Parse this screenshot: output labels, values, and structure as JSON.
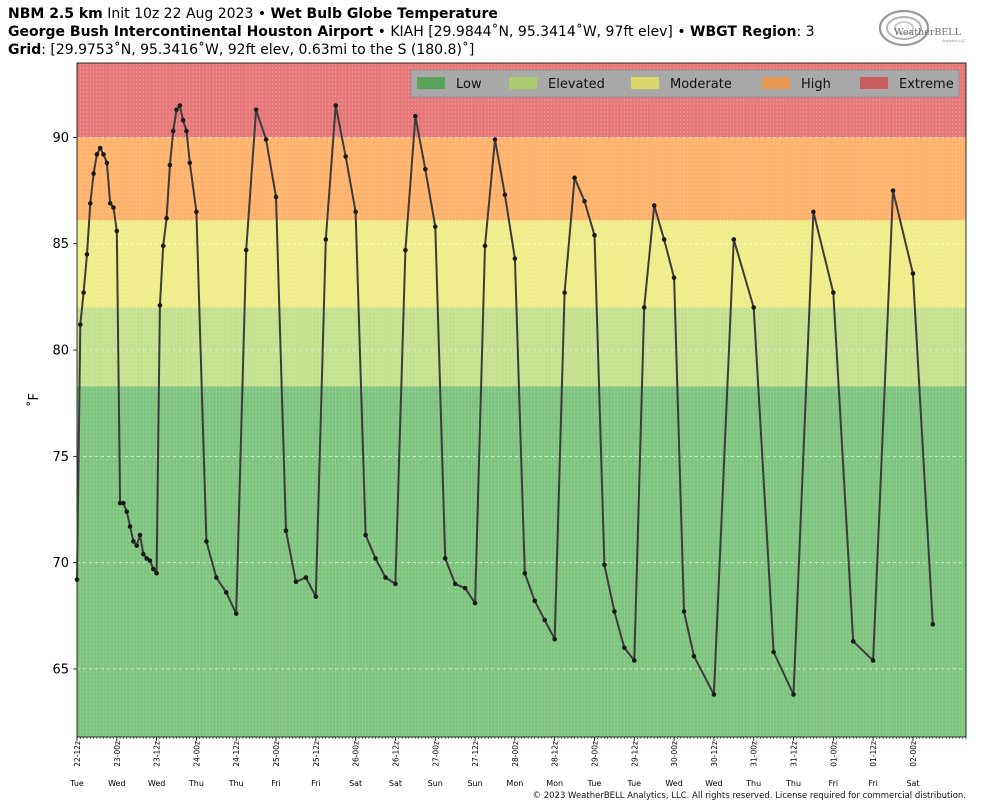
{
  "header": {
    "model": "NBM 2.5 km",
    "init": "Init 10z 22 Aug 2023",
    "sep": "•",
    "product": "Wet Bulb Globe Temperature",
    "station_name": "George Bush Intercontinental Houston Airport",
    "station_info": "KIAH [29.9844˚N, 95.3414˚W, 97ft elev]",
    "region_label": "WBGT Region",
    "region_value": ": 3",
    "grid_label": "Grid",
    "grid_value": ": [29.9753˚N, 95.3416˚W, 92ft elev, 0.63mi to the S (180.8)˚]"
  },
  "logo": {
    "text": "WeatherBELL",
    "sub": "Analytics LLC"
  },
  "footer": {
    "copyright": "© 2023 WeatherBELL Analytics, LLC. All rights reserved. License required for commercial distribution."
  },
  "colors": {
    "low": "#7fc47f",
    "elevated": "#c5e08e",
    "moderate": "#eeed8a",
    "high": "#ffb26b",
    "extreme": "#e67878",
    "line": "#3c3c3c"
  },
  "chart_data": {
    "type": "line",
    "ylabel": "˚F",
    "ylim": [
      61.8,
      93.5
    ],
    "yticks": [
      65,
      70,
      75,
      80,
      85,
      90
    ],
    "grid": true,
    "legend_position": "top-right",
    "risk_bands": [
      {
        "name": "Low",
        "from": 61.8,
        "to": 78.3,
        "color": "#7fc47f"
      },
      {
        "name": "Elevated",
        "from": 78.3,
        "to": 82.0,
        "color": "#c5e08e"
      },
      {
        "name": "Moderate",
        "from": 82.0,
        "to": 86.1,
        "color": "#eeed8a"
      },
      {
        "name": "High",
        "from": 86.1,
        "to": 90.0,
        "color": "#ffb26b"
      },
      {
        "name": "Extreme",
        "from": 90.0,
        "to": 93.5,
        "color": "#e67878"
      }
    ],
    "legend": [
      {
        "name": "Low",
        "color": "#5aa35a"
      },
      {
        "name": "Elevated",
        "color": "#aacd6e"
      },
      {
        "name": "Moderate",
        "color": "#d8d86a"
      },
      {
        "name": "High",
        "color": "#e89a55"
      },
      {
        "name": "Extreme",
        "color": "#c95c5c"
      }
    ],
    "x_unit": "hours after 2023-08-22 12z",
    "xlim": [
      0,
      268
    ],
    "x_ticks": [
      {
        "h": 0,
        "label": "22-12z",
        "day": "Tue"
      },
      {
        "h": 12,
        "label": "23-00z",
        "day": "Wed"
      },
      {
        "h": 24,
        "label": "23-12z",
        "day": "Wed"
      },
      {
        "h": 36,
        "label": "24-00z",
        "day": "Thu"
      },
      {
        "h": 48,
        "label": "24-12z",
        "day": "Thu"
      },
      {
        "h": 60,
        "label": "25-00z",
        "day": "Fri"
      },
      {
        "h": 72,
        "label": "25-12z",
        "day": "Fri"
      },
      {
        "h": 84,
        "label": "26-00z",
        "day": "Sat"
      },
      {
        "h": 96,
        "label": "26-12z",
        "day": "Sat"
      },
      {
        "h": 108,
        "label": "27-00z",
        "day": "Sun"
      },
      {
        "h": 120,
        "label": "27-12z",
        "day": "Sun"
      },
      {
        "h": 132,
        "label": "28-00z",
        "day": "Mon"
      },
      {
        "h": 144,
        "label": "28-12z",
        "day": "Mon"
      },
      {
        "h": 156,
        "label": "29-00z",
        "day": "Tue"
      },
      {
        "h": 168,
        "label": "29-12z",
        "day": "Tue"
      },
      {
        "h": 180,
        "label": "30-00z",
        "day": "Wed"
      },
      {
        "h": 192,
        "label": "30-12z",
        "day": "Wed"
      },
      {
        "h": 204,
        "label": "31-00z",
        "day": "Thu"
      },
      {
        "h": 216,
        "label": "31-12z",
        "day": "Thu"
      },
      {
        "h": 228,
        "label": "01-00z",
        "day": "Fri"
      },
      {
        "h": 240,
        "label": "01-12z",
        "day": "Fri"
      },
      {
        "h": 252,
        "label": "02-00z",
        "day": "Sat"
      }
    ],
    "series": [
      {
        "values": [
          [
            0,
            69.2
          ],
          [
            1,
            81.2
          ],
          [
            2,
            82.7
          ],
          [
            3,
            84.5
          ],
          [
            4,
            86.9
          ],
          [
            5,
            88.3
          ],
          [
            6,
            89.2
          ],
          [
            7,
            89.5
          ],
          [
            8,
            89.2
          ],
          [
            9,
            88.8
          ],
          [
            10,
            86.9
          ],
          [
            11,
            86.7
          ],
          [
            12,
            85.6
          ],
          [
            13,
            72.8
          ],
          [
            14,
            72.8
          ],
          [
            15,
            72.4
          ],
          [
            16,
            71.7
          ],
          [
            17,
            71.0
          ],
          [
            18,
            70.8
          ],
          [
            19,
            71.3
          ],
          [
            20,
            70.4
          ],
          [
            21,
            70.2
          ],
          [
            22,
            70.1
          ],
          [
            23,
            69.7
          ],
          [
            24,
            69.5
          ],
          [
            25,
            82.1
          ],
          [
            26,
            84.9
          ],
          [
            27,
            86.2
          ],
          [
            28,
            88.7
          ],
          [
            29,
            90.3
          ],
          [
            30,
            91.3
          ],
          [
            31,
            91.5
          ],
          [
            32,
            90.8
          ],
          [
            33,
            90.3
          ],
          [
            34,
            88.8
          ],
          [
            36,
            86.5
          ],
          [
            39,
            71.0
          ],
          [
            42,
            69.3
          ],
          [
            45,
            68.6
          ],
          [
            48,
            67.6
          ],
          [
            51,
            84.7
          ],
          [
            54,
            91.3
          ],
          [
            57,
            89.9
          ],
          [
            60,
            87.2
          ],
          [
            63,
            71.5
          ],
          [
            66,
            69.1
          ],
          [
            69,
            69.3
          ],
          [
            72,
            68.4
          ],
          [
            75,
            85.2
          ],
          [
            78,
            91.5
          ],
          [
            81,
            89.1
          ],
          [
            84,
            86.5
          ],
          [
            87,
            71.3
          ],
          [
            90,
            70.2
          ],
          [
            93,
            69.3
          ],
          [
            96,
            69.0
          ],
          [
            99,
            84.7
          ],
          [
            102,
            91.0
          ],
          [
            105,
            88.5
          ],
          [
            108,
            85.8
          ],
          [
            111,
            70.2
          ],
          [
            114,
            69.0
          ],
          [
            117,
            68.8
          ],
          [
            120,
            68.1
          ],
          [
            123,
            84.9
          ],
          [
            126,
            89.9
          ],
          [
            129,
            87.3
          ],
          [
            132,
            84.3
          ],
          [
            135,
            69.5
          ],
          [
            138,
            68.2
          ],
          [
            141,
            67.3
          ],
          [
            144,
            66.4
          ],
          [
            147,
            82.7
          ],
          [
            150,
            88.1
          ],
          [
            153,
            87.0
          ],
          [
            156,
            85.4
          ],
          [
            159,
            69.9
          ],
          [
            162,
            67.7
          ],
          [
            165,
            66.0
          ],
          [
            168,
            65.4
          ],
          [
            171,
            82.0
          ],
          [
            174,
            86.8
          ],
          [
            177,
            85.2
          ],
          [
            180,
            83.4
          ],
          [
            183,
            67.7
          ],
          [
            186,
            65.6
          ],
          [
            192,
            63.8
          ],
          [
            198,
            85.2
          ],
          [
            204,
            82.0
          ],
          [
            210,
            65.8
          ],
          [
            216,
            63.8
          ],
          [
            222,
            86.5
          ],
          [
            228,
            82.7
          ],
          [
            234,
            66.3
          ],
          [
            240,
            65.4
          ],
          [
            246,
            87.5
          ],
          [
            252,
            83.6
          ],
          [
            258,
            67.1
          ]
        ]
      }
    ]
  }
}
